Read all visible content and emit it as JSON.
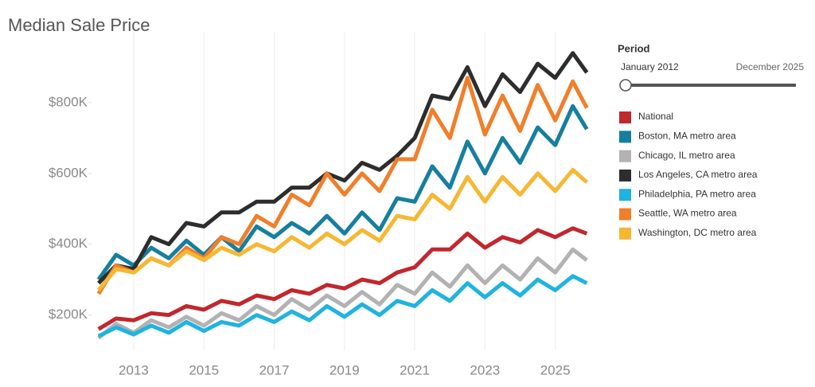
{
  "chart_data": {
    "type": "line",
    "title": "Median Sale Price",
    "x": [
      2012,
      2012.5,
      2013,
      2013.5,
      2014,
      2014.5,
      2015,
      2015.5,
      2016,
      2016.5,
      2017,
      2017.5,
      2018,
      2018.5,
      2019,
      2019.5,
      2020,
      2020.5,
      2021,
      2021.5,
      2022,
      2022.5,
      2023,
      2023.5,
      2024,
      2024.5,
      2025,
      2025.5,
      2025.9
    ],
    "xlim": [
      2011.8,
      2026.3
    ],
    "xticks": [
      2013,
      2015,
      2017,
      2019,
      2021,
      2023,
      2025
    ],
    "ylim": [
      100000,
      1000000
    ],
    "yticks": [
      {
        "value": 200000,
        "label": "$200K"
      },
      {
        "value": 400000,
        "label": "$400K"
      },
      {
        "value": 600000,
        "label": "$600K"
      },
      {
        "value": 800000,
        "label": "$800K"
      }
    ],
    "grid": true,
    "legend": "right",
    "series": [
      {
        "name": "National",
        "color": "#c1272d",
        "values": [
          160000,
          190000,
          185000,
          205000,
          200000,
          225000,
          215000,
          240000,
          230000,
          255000,
          245000,
          270000,
          260000,
          285000,
          275000,
          300000,
          290000,
          320000,
          335000,
          385000,
          385000,
          430000,
          390000,
          420000,
          405000,
          440000,
          420000,
          445000,
          430000
        ]
      },
      {
        "name": "Boston, MA metro area",
        "color": "#167f9e",
        "values": [
          300000,
          370000,
          340000,
          390000,
          360000,
          410000,
          370000,
          420000,
          380000,
          450000,
          420000,
          460000,
          430000,
          480000,
          430000,
          490000,
          440000,
          530000,
          520000,
          620000,
          560000,
          690000,
          600000,
          700000,
          630000,
          730000,
          680000,
          790000,
          725000
        ]
      },
      {
        "name": "Chicago, IL metro area",
        "color": "#b2b2b2",
        "values": [
          135000,
          175000,
          150000,
          185000,
          165000,
          195000,
          170000,
          205000,
          185000,
          225000,
          200000,
          245000,
          215000,
          255000,
          225000,
          265000,
          230000,
          285000,
          260000,
          320000,
          280000,
          340000,
          290000,
          340000,
          300000,
          360000,
          320000,
          385000,
          355000
        ]
      },
      {
        "name": "Los Angeles, CA metro area",
        "color": "#2d2d2d",
        "values": [
          290000,
          340000,
          330000,
          420000,
          400000,
          460000,
          450000,
          490000,
          490000,
          520000,
          520000,
          560000,
          560000,
          600000,
          580000,
          630000,
          610000,
          650000,
          700000,
          820000,
          810000,
          900000,
          790000,
          880000,
          830000,
          910000,
          870000,
          940000,
          885000
        ]
      },
      {
        "name": "Philadelphia, PA metro area",
        "color": "#1fb3e0",
        "values": [
          140000,
          165000,
          145000,
          170000,
          150000,
          180000,
          155000,
          180000,
          170000,
          200000,
          180000,
          210000,
          185000,
          225000,
          195000,
          230000,
          200000,
          240000,
          225000,
          270000,
          240000,
          290000,
          250000,
          290000,
          255000,
          300000,
          270000,
          310000,
          290000
        ]
      },
      {
        "name": "Seattle, WA metro area",
        "color": "#f07f2a",
        "values": [
          260000,
          340000,
          320000,
          360000,
          340000,
          390000,
          360000,
          420000,
          400000,
          480000,
          450000,
          540000,
          510000,
          600000,
          540000,
          600000,
          550000,
          640000,
          640000,
          780000,
          700000,
          870000,
          710000,
          820000,
          720000,
          850000,
          750000,
          860000,
          785000
        ]
      },
      {
        "name": "Washington, DC metro area",
        "color": "#f7b733",
        "values": [
          270000,
          330000,
          320000,
          360000,
          340000,
          380000,
          355000,
          390000,
          370000,
          400000,
          380000,
          420000,
          390000,
          430000,
          400000,
          440000,
          410000,
          480000,
          470000,
          540000,
          500000,
          590000,
          520000,
          590000,
          540000,
          600000,
          550000,
          610000,
          575000
        ]
      }
    ]
  },
  "period_filter": {
    "label": "Period",
    "start": "January 2012",
    "end": "December 2025"
  }
}
